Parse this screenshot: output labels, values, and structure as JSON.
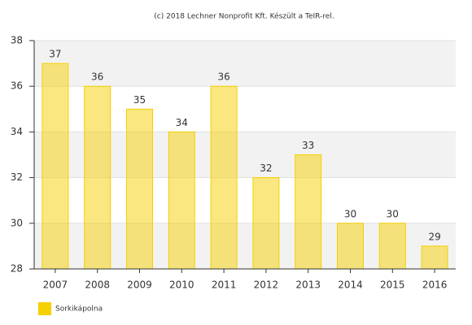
{
  "chart_data": {
    "type": "bar",
    "title": "(c) 2018 Lechner Nonprofit Kft. Készült a TeIR-rel.",
    "categories": [
      "2007",
      "2008",
      "2009",
      "2010",
      "2011",
      "2012",
      "2013",
      "2014",
      "2015",
      "2016"
    ],
    "series": [
      {
        "name": "Sorkikápolna",
        "color": "#f5d000",
        "values": [
          37,
          36,
          35,
          34,
          36,
          32,
          33,
          30,
          30,
          29
        ]
      }
    ],
    "ylim": [
      28,
      38
    ],
    "yticks": [
      28,
      30,
      32,
      34,
      36,
      38
    ],
    "grid": true,
    "legend": "bottom-left"
  }
}
